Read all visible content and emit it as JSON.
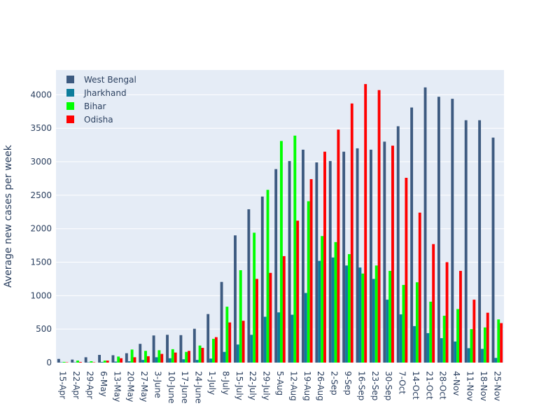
{
  "chart_data": {
    "type": "bar",
    "title": "",
    "xlabel": "",
    "ylabel": "Average new cases per week",
    "ylim": [
      0,
      4370
    ],
    "yticks": [
      0,
      500,
      1000,
      1500,
      2000,
      2500,
      3000,
      3500,
      4000
    ],
    "grid": true,
    "legend_position": "top-left",
    "categories": [
      "15-Apr",
      "22-Apr",
      "29-Apr",
      "6-May",
      "13-May",
      "20-May",
      "27-May",
      "3-June",
      "10-June",
      "17-June",
      "24-June",
      "1-July",
      "8-July",
      "15-July",
      "22-July",
      "29-July",
      "5-Aug",
      "12-Aug",
      "19-Aug",
      "26-Aug",
      "2-Sep",
      "9-Sep",
      "16-Sep",
      "23-Sep",
      "30-Sep",
      "7-Oct",
      "14-Oct",
      "21-Oct",
      "28-Oct",
      "4-Nov",
      "11-Nov",
      "18-Nov",
      "25-Nov"
    ],
    "series": [
      {
        "name": "West Bengal",
        "color": "#3d5a80",
        "values": [
          55,
          45,
          80,
          115,
          110,
          140,
          280,
          405,
          415,
          410,
          505,
          725,
          1205,
          1900,
          2290,
          2480,
          2890,
          3010,
          3180,
          2990,
          3010,
          3150,
          3200,
          3180,
          3300,
          3530,
          3810,
          4110,
          3970,
          3940,
          3620,
          3620,
          3360
        ]
      },
      {
        "name": "Jharkhand",
        "color": "#0d7d9c",
        "values": [
          5,
          5,
          5,
          10,
          15,
          20,
          40,
          80,
          65,
          50,
          40,
          60,
          160,
          270,
          415,
          685,
          750,
          715,
          1040,
          1520,
          1570,
          1450,
          1420,
          1250,
          940,
          720,
          545,
          440,
          365,
          315,
          215,
          205,
          70
        ]
      },
      {
        "name": "Bihar",
        "color": "#00ff00",
        "values": [
          10,
          30,
          20,
          30,
          90,
          195,
          175,
          185,
          200,
          160,
          255,
          355,
          835,
          1380,
          1940,
          2580,
          3310,
          3390,
          2410,
          1890,
          1800,
          1620,
          1330,
          1450,
          1370,
          1160,
          1200,
          910,
          700,
          800,
          500,
          525,
          645
        ]
      },
      {
        "name": "Odisha",
        "color": "#ff0000",
        "values": [
          5,
          10,
          5,
          30,
          65,
          80,
          95,
          130,
          150,
          175,
          220,
          380,
          600,
          625,
          1250,
          1340,
          1590,
          2120,
          2740,
          3150,
          3480,
          3870,
          4160,
          4070,
          3240,
          2760,
          2240,
          1770,
          1500,
          1370,
          940,
          745,
          590
        ]
      }
    ]
  }
}
